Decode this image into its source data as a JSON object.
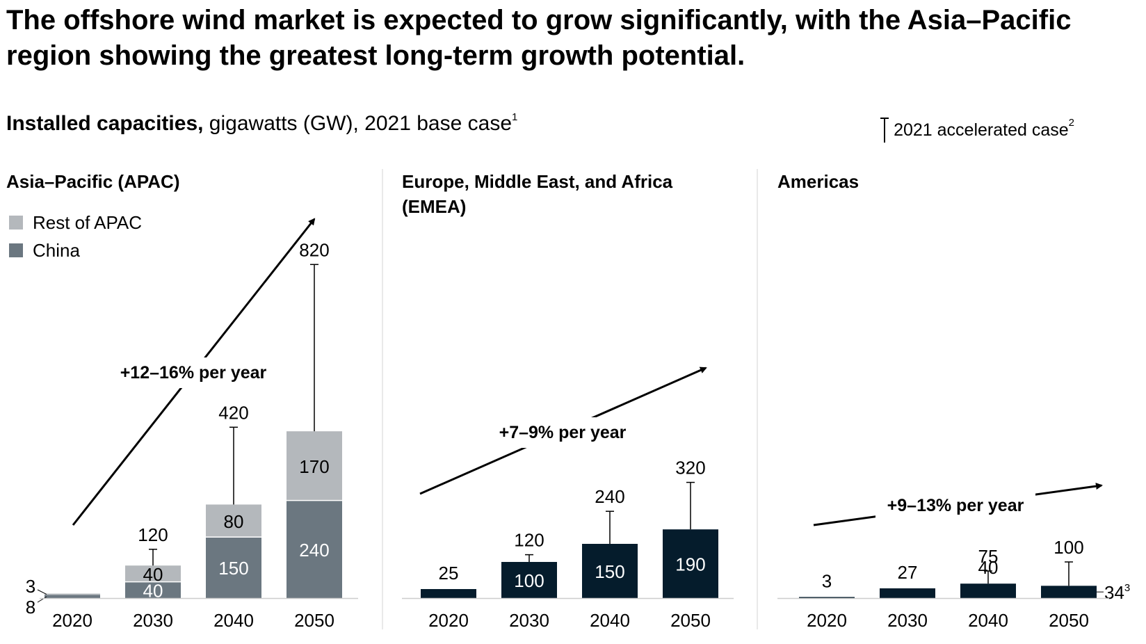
{
  "headline": "The offshore wind market is expected to grow significantly, with the Asia–Pacific region showing the greatest long-term growth potential.",
  "subtitle": {
    "bold": "Installed capacities,",
    "rest": " gigawatts (GW), 2021 base case",
    "footnote": "1"
  },
  "accelerated_legend": {
    "label": "2021 accelerated case",
    "footnote": "2"
  },
  "colors": {
    "rest_of_apac": "#b4b8bc",
    "china": "#6b7780",
    "emea": "#051c2c",
    "americas": "#051c2c",
    "axis": "#cccccc",
    "divider": "#e2e2e2"
  },
  "chart_data": [
    {
      "type": "bar",
      "title": "Asia–Pacific (APAC)",
      "stacked": true,
      "categories": [
        "2020",
        "2030",
        "2040",
        "2050"
      ],
      "series": [
        {
          "name": "China",
          "values": [
            8,
            40,
            150,
            240
          ],
          "value_labels": [
            "8",
            "40",
            "150",
            "240"
          ]
        },
        {
          "name": "Rest of APAC",
          "values": [
            3,
            40,
            80,
            170
          ],
          "value_labels": [
            "3",
            "40",
            "80",
            "170"
          ]
        }
      ],
      "accelerated_case": [
        null,
        120,
        420,
        820
      ],
      "accelerated_labels": [
        "",
        "120",
        "420",
        "820"
      ],
      "growth_annotation": "+12–16% per year",
      "legend": [
        "Rest of APAC",
        "China"
      ],
      "legend_position": "top-left",
      "grid": false
    },
    {
      "type": "bar",
      "title": "Europe, Middle East, and Africa (EMEA)",
      "title_lines": [
        "Europe, Middle East, and Africa",
        "(EMEA)"
      ],
      "categories": [
        "2020",
        "2030",
        "2040",
        "2050"
      ],
      "values": [
        25,
        100,
        150,
        190
      ],
      "value_labels": [
        "25",
        "100",
        "150",
        "190"
      ],
      "accelerated_case": [
        null,
        120,
        240,
        320
      ],
      "accelerated_labels": [
        "",
        "120",
        "240",
        "320"
      ],
      "growth_annotation": "+7–9% per year",
      "grid": false
    },
    {
      "type": "bar",
      "title": "Americas",
      "categories": [
        "2020",
        "2030",
        "2040",
        "2050"
      ],
      "values": [
        3,
        27,
        40,
        34
      ],
      "value_labels": [
        "3",
        "27",
        "40",
        "34"
      ],
      "value_label_footnote": "3",
      "accelerated_case": [
        null,
        null,
        75,
        100
      ],
      "accelerated_labels": [
        "",
        "",
        "75",
        "100"
      ],
      "growth_annotation": "+9–13% per year",
      "grid": false
    }
  ]
}
